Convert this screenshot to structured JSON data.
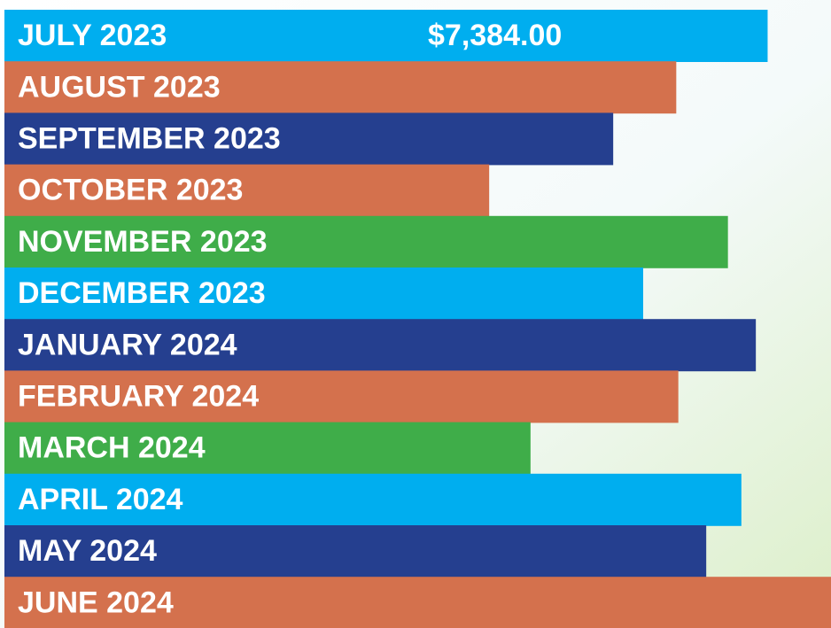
{
  "chart_data": {
    "type": "bar",
    "orientation": "horizontal",
    "categories": [
      "JULY 2023",
      "AUGUST 2023",
      "SEPTEMBER 2023",
      "OCTOBER 2023",
      "NOVEMBER 2023",
      "DECEMBER 2023",
      "JANUARY 2024",
      "FEBRUARY 2024",
      "MARCH 2024",
      "APRIL 2024",
      "MAY 2024",
      "JUNE 2024"
    ],
    "values": [
      7384,
      6500,
      5890,
      4690,
      7000,
      6180,
      7270,
      6520,
      5090,
      7130,
      6790,
      8100
    ],
    "value_labels": [
      "$7,384.00",
      null,
      null,
      null,
      null,
      null,
      null,
      null,
      null,
      null,
      null,
      null
    ],
    "colors": [
      "#00aeef",
      "#d4714d",
      "#253f8f",
      "#d4714d",
      "#3fad49",
      "#00aeef",
      "#253f8f",
      "#d4714d",
      "#3fad49",
      "#00aeef",
      "#253f8f",
      "#d4714d"
    ]
  }
}
